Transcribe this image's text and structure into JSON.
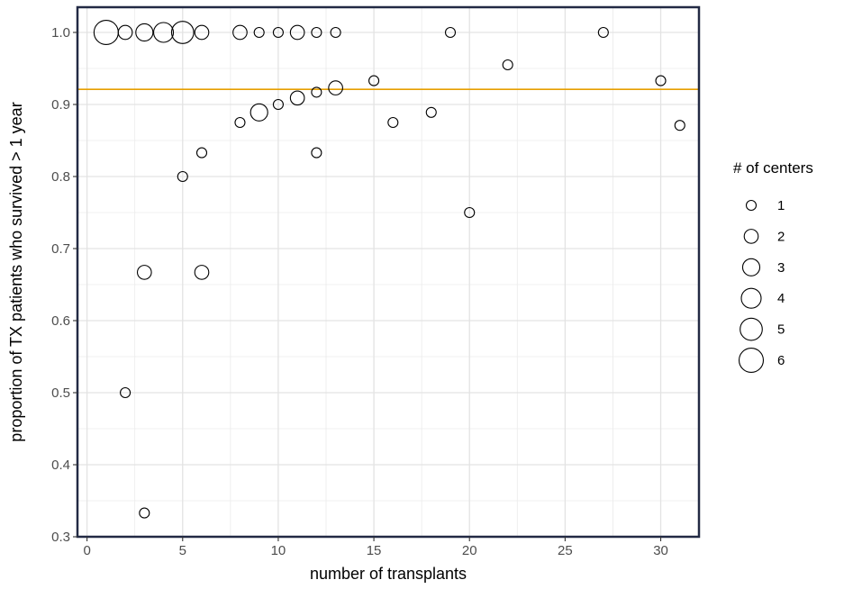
{
  "chart_data": {
    "type": "scatter",
    "title": "",
    "xlabel": "number of transplants",
    "ylabel": "proportion of TX patients who survived > 1 year",
    "xlim": [
      -0.5,
      32
    ],
    "ylim": [
      0.3,
      1.035
    ],
    "xticks": [
      0,
      5,
      10,
      15,
      20,
      25,
      30
    ],
    "yticks": [
      0.3,
      0.4,
      0.5,
      0.6,
      0.7,
      0.8,
      0.9,
      1.0
    ],
    "grid": true,
    "reference_line": {
      "y": 0.921,
      "color": "#E69F00"
    },
    "size_legend": {
      "title": "# of centers",
      "position": "right",
      "entries": [
        {
          "label": "1",
          "value": 1
        },
        {
          "label": "2",
          "value": 2
        },
        {
          "label": "3",
          "value": 3
        },
        {
          "label": "4",
          "value": 4
        },
        {
          "label": "5",
          "value": 5
        },
        {
          "label": "6",
          "value": 6
        }
      ]
    },
    "points": [
      {
        "x": 1,
        "y": 1.0,
        "size": 6
      },
      {
        "x": 2,
        "y": 1.0,
        "size": 2
      },
      {
        "x": 3,
        "y": 1.0,
        "size": 3
      },
      {
        "x": 4,
        "y": 1.0,
        "size": 4
      },
      {
        "x": 5,
        "y": 1.0,
        "size": 5
      },
      {
        "x": 6,
        "y": 1.0,
        "size": 2
      },
      {
        "x": 8,
        "y": 1.0,
        "size": 2
      },
      {
        "x": 9,
        "y": 1.0,
        "size": 1
      },
      {
        "x": 10,
        "y": 1.0,
        "size": 1
      },
      {
        "x": 11,
        "y": 1.0,
        "size": 2
      },
      {
        "x": 12,
        "y": 1.0,
        "size": 1
      },
      {
        "x": 13,
        "y": 1.0,
        "size": 1
      },
      {
        "x": 19,
        "y": 1.0,
        "size": 1
      },
      {
        "x": 27,
        "y": 1.0,
        "size": 1
      },
      {
        "x": 22,
        "y": 0.955,
        "size": 1
      },
      {
        "x": 15,
        "y": 0.933,
        "size": 1
      },
      {
        "x": 30,
        "y": 0.933,
        "size": 1
      },
      {
        "x": 13,
        "y": 0.923,
        "size": 2
      },
      {
        "x": 12,
        "y": 0.917,
        "size": 1
      },
      {
        "x": 11,
        "y": 0.909,
        "size": 2
      },
      {
        "x": 10,
        "y": 0.9,
        "size": 1
      },
      {
        "x": 9,
        "y": 0.889,
        "size": 3
      },
      {
        "x": 18,
        "y": 0.889,
        "size": 1
      },
      {
        "x": 8,
        "y": 0.875,
        "size": 1
      },
      {
        "x": 16,
        "y": 0.875,
        "size": 1
      },
      {
        "x": 31,
        "y": 0.871,
        "size": 1
      },
      {
        "x": 6,
        "y": 0.833,
        "size": 1
      },
      {
        "x": 12,
        "y": 0.833,
        "size": 1
      },
      {
        "x": 5,
        "y": 0.8,
        "size": 1
      },
      {
        "x": 20,
        "y": 0.75,
        "size": 1
      },
      {
        "x": 3,
        "y": 0.667,
        "size": 2
      },
      {
        "x": 6,
        "y": 0.667,
        "size": 2
      },
      {
        "x": 2,
        "y": 0.5,
        "size": 1
      },
      {
        "x": 3,
        "y": 0.333,
        "size": 1
      }
    ]
  }
}
